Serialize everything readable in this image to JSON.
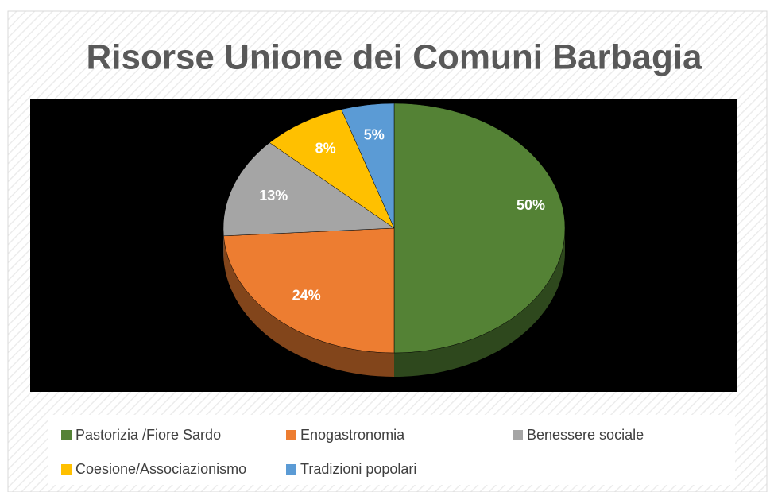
{
  "chart_data": {
    "type": "pie",
    "title": "Risorse Unione dei Comuni Barbagia",
    "categories": [
      "Pastorizia /Fiore Sardo",
      "Enogastronomia",
      "Benessere sociale",
      "Coesione/Associazionismo",
      "Tradizioni popolari"
    ],
    "values": [
      50,
      24,
      13,
      8,
      5
    ],
    "value_labels": [
      "50%",
      "24%",
      "13%",
      "8%",
      "5%"
    ],
    "colors": [
      "#548235",
      "#ed7d31",
      "#a5a5a5",
      "#ffc000",
      "#5b9bd5"
    ],
    "legend": "bottom"
  }
}
